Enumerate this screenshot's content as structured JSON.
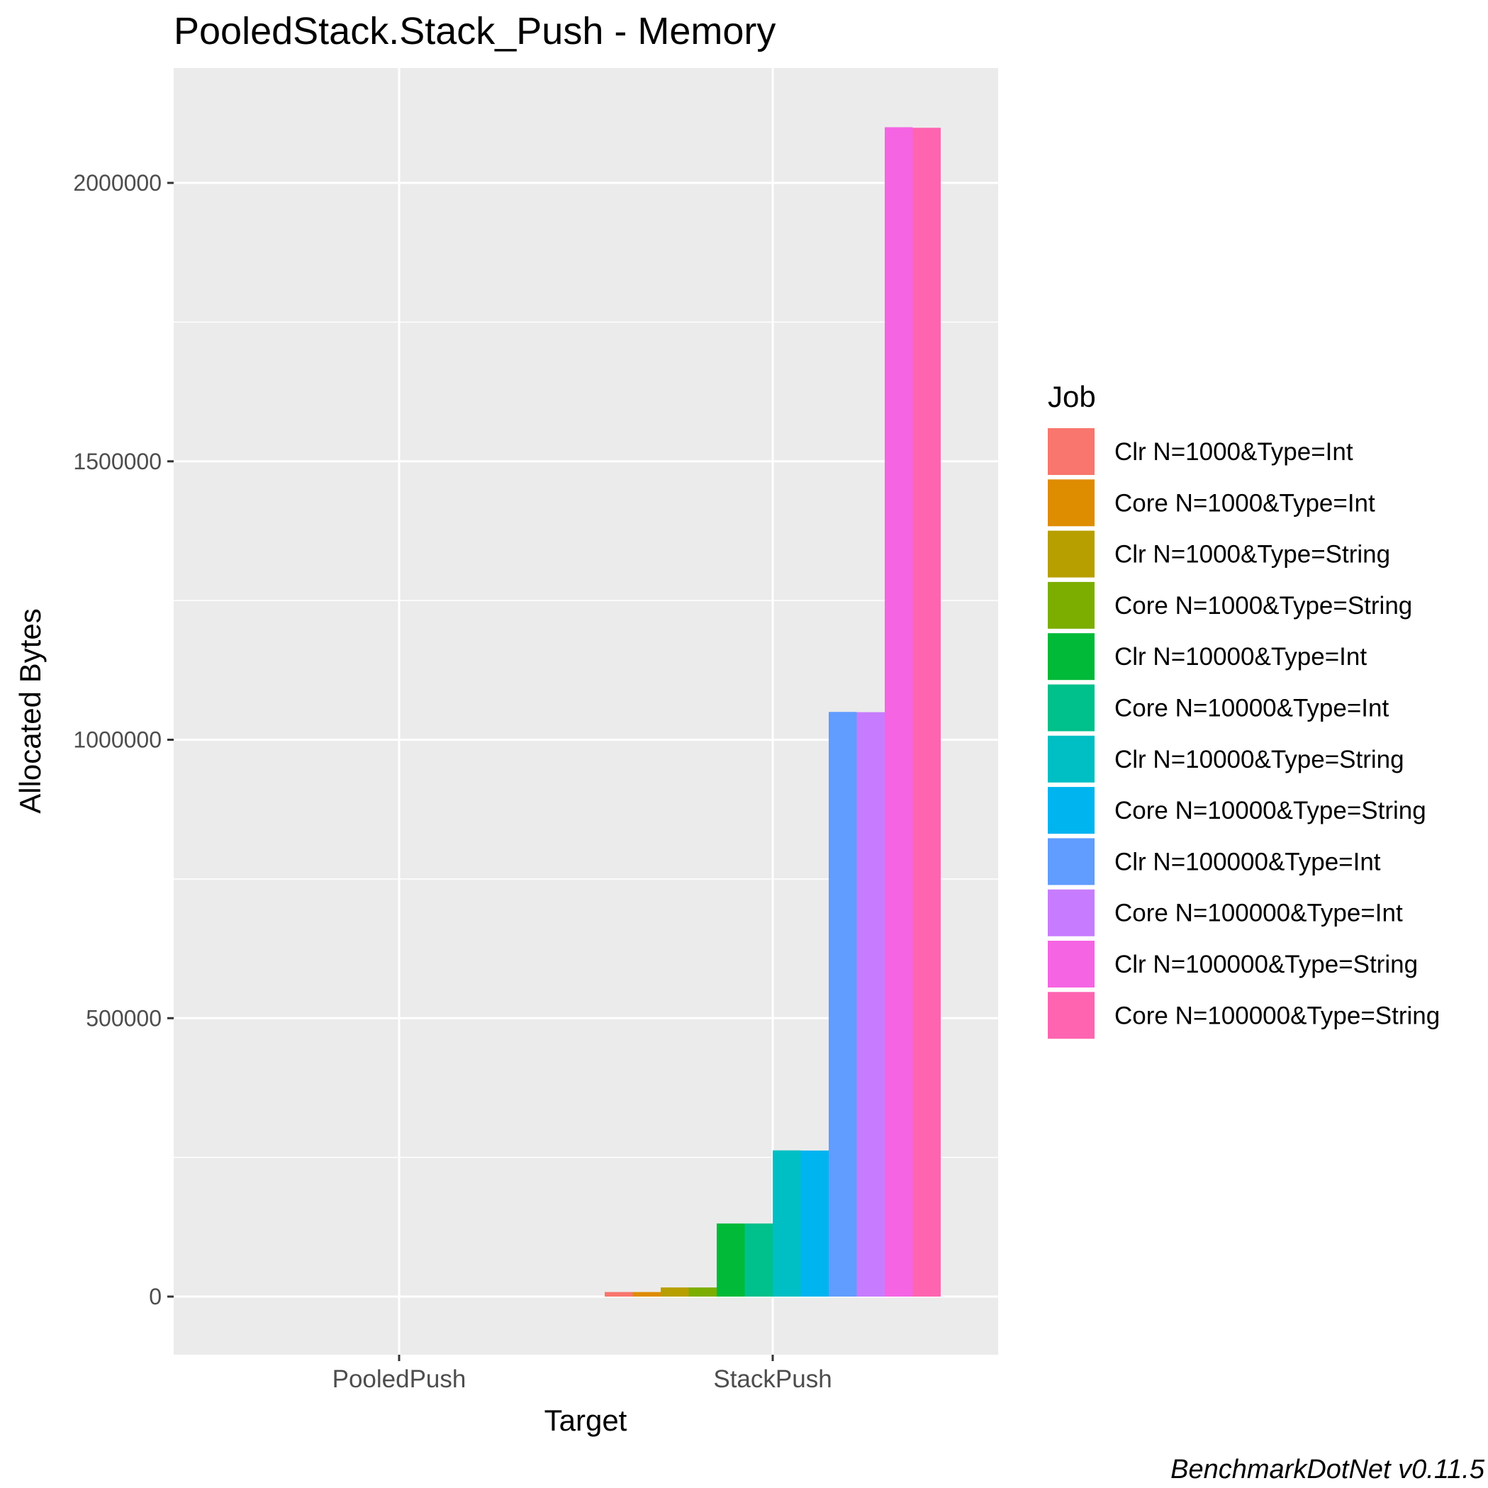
{
  "chart_data": {
    "type": "bar",
    "title": "PooledStack.Stack_Push - Memory",
    "xlabel": "Target",
    "ylabel": "Allocated  Bytes",
    "categories": [
      "PooledPush",
      "StackPush"
    ],
    "ylim": [
      -100000,
      2200000
    ],
    "yticks": [
      0,
      500000,
      1000000,
      1500000,
      2000000
    ],
    "ytick_labels": [
      "0",
      "500000",
      "1000000",
      "1500000",
      "2000000"
    ],
    "grid": true,
    "legend_title": "Job",
    "legend_position": "right",
    "series": [
      {
        "name": "Clr N=1000&Type=Int",
        "color": "#F8766D",
        "values": [
          0,
          8200
        ]
      },
      {
        "name": "Core N=1000&Type=Int",
        "color": "#DE8C00",
        "values": [
          0,
          8200
        ]
      },
      {
        "name": "Clr N=1000&Type=String",
        "color": "#B79F00",
        "values": [
          0,
          16400
        ]
      },
      {
        "name": "Core N=1000&Type=String",
        "color": "#7CAE00",
        "values": [
          0,
          16400
        ]
      },
      {
        "name": "Clr N=10000&Type=Int",
        "color": "#00BA38",
        "values": [
          0,
          131300
        ]
      },
      {
        "name": "Core N=10000&Type=Int",
        "color": "#00C08B",
        "values": [
          0,
          131300
        ]
      },
      {
        "name": "Clr N=10000&Type=String",
        "color": "#00BFC4",
        "values": [
          0,
          262600
        ]
      },
      {
        "name": "Core N=10000&Type=String",
        "color": "#00B4F0",
        "values": [
          0,
          262300
        ]
      },
      {
        "name": "Clr N=100000&Type=Int",
        "color": "#619CFF",
        "values": [
          0,
          1050000
        ]
      },
      {
        "name": "Core N=100000&Type=Int",
        "color": "#C77CFF",
        "values": [
          0,
          1049500
        ]
      },
      {
        "name": "Clr N=100000&Type=String",
        "color": "#F564E3",
        "values": [
          0,
          2100000
        ]
      },
      {
        "name": "Core N=100000&Type=String",
        "color": "#FF64B0",
        "values": [
          0,
          2099000
        ]
      }
    ],
    "caption": "BenchmarkDotNet v0.11.5"
  }
}
